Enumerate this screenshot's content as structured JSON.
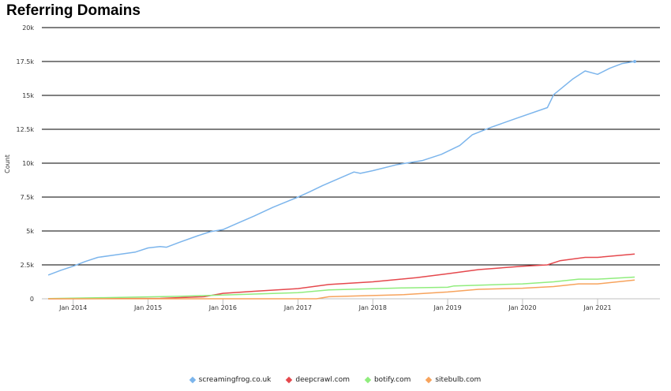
{
  "chart_data": {
    "type": "line",
    "title": "Referring Domains",
    "ylabel": "Count",
    "xlabel": "",
    "ylim": [
      0,
      20000
    ],
    "yticks": [
      0,
      2500,
      5000,
      7500,
      10000,
      12500,
      15000,
      17500,
      20000
    ],
    "ytick_labels": [
      "0",
      "2.5k",
      "5k",
      "7.5k",
      "10k",
      "12.5k",
      "15k",
      "17.5k",
      "20k"
    ],
    "xlim": [
      "2013-08-01",
      "2021-11-01"
    ],
    "xticks": [
      "2014-01-01",
      "2015-01-01",
      "2016-01-01",
      "2017-01-01",
      "2018-01-01",
      "2019-01-01",
      "2020-01-01",
      "2021-01-01"
    ],
    "xtick_labels": [
      "Jan 2014",
      "Jan 2015",
      "Jan 2016",
      "Jan 2017",
      "Jan 2018",
      "Jan 2019",
      "Jan 2020",
      "Jan 2021"
    ],
    "grid": true,
    "legend_position": "bottom",
    "series": [
      {
        "name": "screamingfrog.co.uk",
        "color": "#7cb5ec",
        "points": [
          [
            "2013-09-01",
            1750
          ],
          [
            "2013-11-01",
            2100
          ],
          [
            "2014-01-01",
            2400
          ],
          [
            "2014-03-01",
            2750
          ],
          [
            "2014-05-01",
            3050
          ],
          [
            "2014-08-01",
            3250
          ],
          [
            "2014-11-01",
            3450
          ],
          [
            "2015-01-01",
            3750
          ],
          [
            "2015-03-01",
            3850
          ],
          [
            "2015-04-01",
            3800
          ],
          [
            "2015-06-01",
            4150
          ],
          [
            "2015-09-01",
            4650
          ],
          [
            "2015-11-01",
            4950
          ],
          [
            "2016-01-01",
            5100
          ],
          [
            "2016-03-01",
            5500
          ],
          [
            "2016-06-01",
            6100
          ],
          [
            "2016-09-01",
            6750
          ],
          [
            "2017-01-01",
            7500
          ],
          [
            "2017-03-01",
            7900
          ],
          [
            "2017-05-01",
            8350
          ],
          [
            "2017-08-01",
            8950
          ],
          [
            "2017-10-01",
            9350
          ],
          [
            "2017-11-01",
            9250
          ],
          [
            "2018-01-01",
            9450
          ],
          [
            "2018-05-01",
            9900
          ],
          [
            "2018-09-01",
            10200
          ],
          [
            "2018-12-01",
            10650
          ],
          [
            "2019-03-01",
            11300
          ],
          [
            "2019-05-01",
            12100
          ],
          [
            "2019-08-01",
            12650
          ],
          [
            "2019-12-01",
            13300
          ],
          [
            "2020-05-01",
            14100
          ],
          [
            "2020-06-01",
            15050
          ],
          [
            "2020-09-01",
            16200
          ],
          [
            "2020-11-01",
            16800
          ],
          [
            "2021-01-01",
            16550
          ],
          [
            "2021-03-01",
            17000
          ],
          [
            "2021-05-01",
            17350
          ],
          [
            "2021-07-01",
            17500
          ]
        ]
      },
      {
        "name": "deepcrawl.com",
        "color": "#e5484d",
        "points": [
          [
            "2013-09-01",
            0
          ],
          [
            "2015-03-01",
            30
          ],
          [
            "2015-10-01",
            150
          ],
          [
            "2016-01-01",
            400
          ],
          [
            "2016-06-01",
            550
          ],
          [
            "2017-01-01",
            750
          ],
          [
            "2017-06-01",
            1050
          ],
          [
            "2018-01-01",
            1250
          ],
          [
            "2018-08-01",
            1550
          ],
          [
            "2019-01-01",
            1850
          ],
          [
            "2019-06-01",
            2150
          ],
          [
            "2020-01-01",
            2400
          ],
          [
            "2020-05-01",
            2500
          ],
          [
            "2020-07-01",
            2800
          ],
          [
            "2020-11-01",
            3050
          ],
          [
            "2021-01-01",
            3050
          ],
          [
            "2021-07-01",
            3300
          ]
        ]
      },
      {
        "name": "botify.com",
        "color": "#90ed7d",
        "points": [
          [
            "2013-09-01",
            20
          ],
          [
            "2014-06-01",
            80
          ],
          [
            "2015-06-01",
            180
          ],
          [
            "2016-01-01",
            280
          ],
          [
            "2017-01-01",
            450
          ],
          [
            "2017-06-01",
            650
          ],
          [
            "2018-06-01",
            800
          ],
          [
            "2019-01-01",
            850
          ],
          [
            "2019-02-01",
            950
          ],
          [
            "2020-01-01",
            1100
          ],
          [
            "2020-06-01",
            1250
          ],
          [
            "2020-10-01",
            1450
          ],
          [
            "2021-01-01",
            1450
          ],
          [
            "2021-07-01",
            1600
          ]
        ]
      },
      {
        "name": "sitebulb.com",
        "color": "#f7a35c",
        "points": [
          [
            "2013-09-01",
            0
          ],
          [
            "2017-04-01",
            0
          ],
          [
            "2017-06-01",
            150
          ],
          [
            "2018-06-01",
            300
          ],
          [
            "2019-01-01",
            500
          ],
          [
            "2019-06-01",
            700
          ],
          [
            "2020-01-01",
            780
          ],
          [
            "2020-06-01",
            900
          ],
          [
            "2020-10-01",
            1100
          ],
          [
            "2021-01-01",
            1100
          ],
          [
            "2021-07-01",
            1380
          ]
        ]
      }
    ]
  }
}
